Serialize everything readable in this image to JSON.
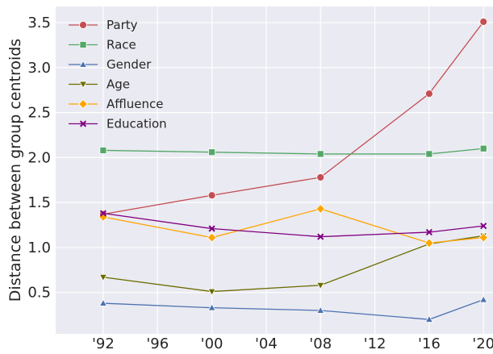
{
  "chart_data": {
    "type": "line",
    "title": "",
    "xlabel": "",
    "ylabel": "Distance between group centroids",
    "x": [
      1992,
      2000,
      2008,
      2016,
      2020
    ],
    "x_tick_values": [
      1992,
      1996,
      2000,
      2004,
      2008,
      2012,
      2016,
      2020
    ],
    "x_tick_labels": [
      "'92",
      "'96",
      "'00",
      "'04",
      "'08",
      "'12",
      "'16",
      "'20"
    ],
    "y_tick_values": [
      0.5,
      1.0,
      1.5,
      2.0,
      2.5,
      3.0,
      3.5
    ],
    "y_tick_labels": [
      "0.5",
      "1.0",
      "1.5",
      "2.0",
      "2.5",
      "3.0",
      "3.5"
    ],
    "xlim": [
      1988.5,
      2020.7
    ],
    "ylim": [
      0.04,
      3.68
    ],
    "grid": true,
    "legend_position": "top-left",
    "series": [
      {
        "name": "Party",
        "color": "#c44e52",
        "marker": "circle",
        "values": [
          1.37,
          1.58,
          1.78,
          2.71,
          3.51
        ]
      },
      {
        "name": "Race",
        "color": "#55a868",
        "marker": "square",
        "values": [
          2.08,
          2.06,
          2.04,
          2.04,
          2.1
        ]
      },
      {
        "name": "Gender",
        "color": "#4c72b0",
        "marker": "triangle-up",
        "values": [
          0.38,
          0.33,
          0.3,
          0.2,
          0.42
        ]
      },
      {
        "name": "Age",
        "color": "#6b6b00",
        "marker": "triangle-down",
        "values": [
          0.67,
          0.51,
          0.58,
          1.04,
          1.13
        ]
      },
      {
        "name": "Affluence",
        "color": "#ffa500",
        "marker": "diamond",
        "values": [
          1.34,
          1.11,
          1.43,
          1.05,
          1.11
        ]
      },
      {
        "name": "Education",
        "color": "#800080",
        "marker": "x",
        "values": [
          1.38,
          1.21,
          1.12,
          1.17,
          1.24
        ]
      }
    ]
  }
}
